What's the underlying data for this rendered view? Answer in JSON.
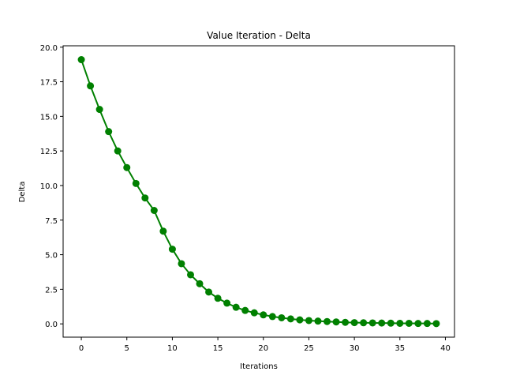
{
  "chart_data": {
    "type": "line",
    "title": "Value Iteration - Delta",
    "xlabel": "Iterations",
    "ylabel": "Delta",
    "xlim": [
      -2,
      41
    ],
    "ylim": [
      -0.96,
      20.1
    ],
    "xticks": [
      0,
      5,
      10,
      15,
      20,
      25,
      30,
      35,
      40
    ],
    "yticks": [
      0.0,
      2.5,
      5.0,
      7.5,
      10.0,
      12.5,
      15.0,
      17.5,
      20.0
    ],
    "xtick_labels": [
      "0",
      "5",
      "10",
      "15",
      "20",
      "25",
      "30",
      "35",
      "40"
    ],
    "ytick_labels": [
      "0.0",
      "2.5",
      "5.0",
      "7.5",
      "10.0",
      "12.5",
      "15.0",
      "17.5",
      "20.0"
    ],
    "grid": false,
    "color": "#008000",
    "series": [
      {
        "x": [
          0,
          1,
          2,
          3,
          4,
          5,
          6,
          7,
          8,
          9,
          10,
          11,
          12,
          13,
          14,
          15,
          16,
          17,
          18,
          19,
          20,
          21,
          22,
          23,
          24,
          25,
          26,
          27,
          28,
          29,
          30,
          31,
          32,
          33,
          34,
          35,
          36,
          37,
          38,
          39
        ],
        "values": [
          19.1,
          17.2,
          15.5,
          13.9,
          12.5,
          11.3,
          10.15,
          9.1,
          8.2,
          6.7,
          5.4,
          4.35,
          3.55,
          2.9,
          2.3,
          1.85,
          1.5,
          1.2,
          0.97,
          0.8,
          0.65,
          0.53,
          0.44,
          0.36,
          0.29,
          0.24,
          0.2,
          0.17,
          0.14,
          0.11,
          0.09,
          0.08,
          0.07,
          0.06,
          0.05,
          0.04,
          0.04,
          0.03,
          0.03,
          0.02
        ]
      }
    ]
  }
}
